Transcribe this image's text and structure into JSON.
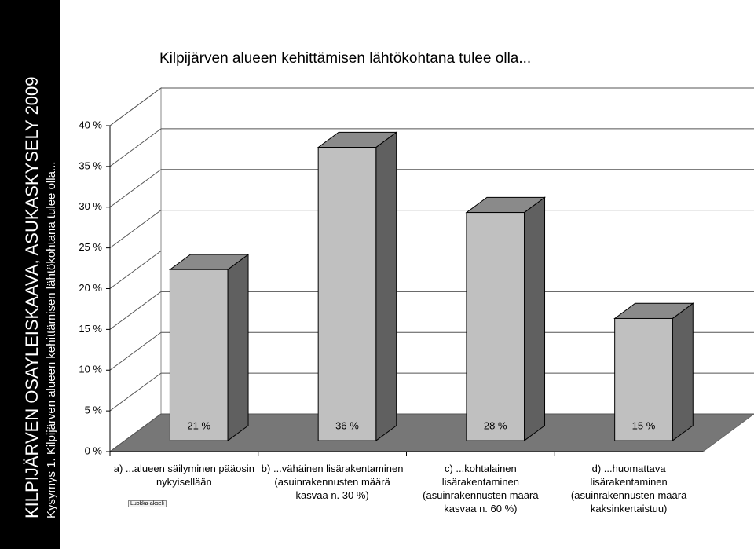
{
  "header": {
    "title": "KILPIJÄRVEN OSAYLEISKAAVA, ASUKASKYSELY 2009",
    "subtitle": "Kysymys 1. Kilpijärven alueen kehittämisen lähtökohtana tulee olla..."
  },
  "chart_data": {
    "type": "bar3d",
    "title": "Kilpijärven alueen kehittämisen lähtökohtana tulee olla...",
    "categories": [
      "a) ...alueen säilyminen pääosin nykyisellään",
      "b) ...vähäinen lisärakentaminen (asuinrakennusten määrä kasvaa n. 30 %)",
      "c) ...kohtalainen lisärakentaminen (asuinrakennusten määrä kasvaa n. 60 %)",
      "d) ...huomattava lisärakentaminen (asuinrakennusten määrä kaksinkertaistuu)"
    ],
    "values": [
      21,
      36,
      28,
      15
    ],
    "value_labels": [
      "21 %",
      "36 %",
      "28 %",
      "15 %"
    ],
    "color": "#c0c0c0",
    "ylim": [
      0,
      40
    ],
    "yticks": [
      {
        "value": 0,
        "label": "0 %"
      },
      {
        "value": 5,
        "label": "5 %"
      },
      {
        "value": 10,
        "label": "10 %"
      },
      {
        "value": 15,
        "label": "15 %"
      },
      {
        "value": 20,
        "label": "20 %"
      },
      {
        "value": 25,
        "label": "25 %"
      },
      {
        "value": 30,
        "label": "30 %"
      },
      {
        "value": 35,
        "label": "35 %"
      },
      {
        "value": 40,
        "label": "40 %"
      }
    ],
    "grid": true,
    "axis_badge": "Luokka-akseli"
  }
}
